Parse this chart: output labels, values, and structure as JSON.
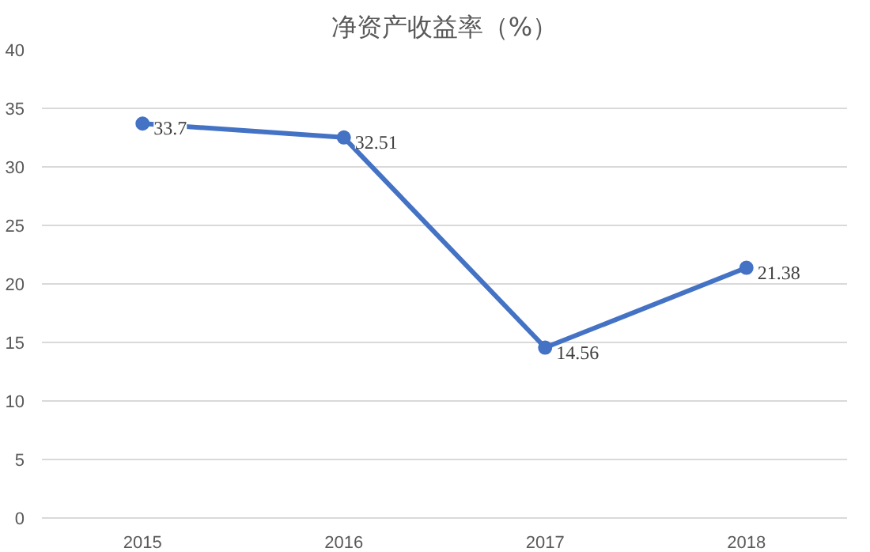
{
  "chart_data": {
    "type": "line",
    "title": "净资产收益率（%）",
    "categories": [
      "2015",
      "2016",
      "2017",
      "2018"
    ],
    "series": [
      {
        "color": "#4472c4",
        "values": [
          33.7,
          32.51,
          14.56,
          21.38
        ]
      }
    ],
    "ylim": [
      0,
      40
    ],
    "yticks": [
      0,
      5,
      10,
      15,
      20,
      25,
      30,
      35,
      40
    ],
    "grid": "y",
    "marker": "circle",
    "line_style": "solid",
    "data_labels": true
  }
}
